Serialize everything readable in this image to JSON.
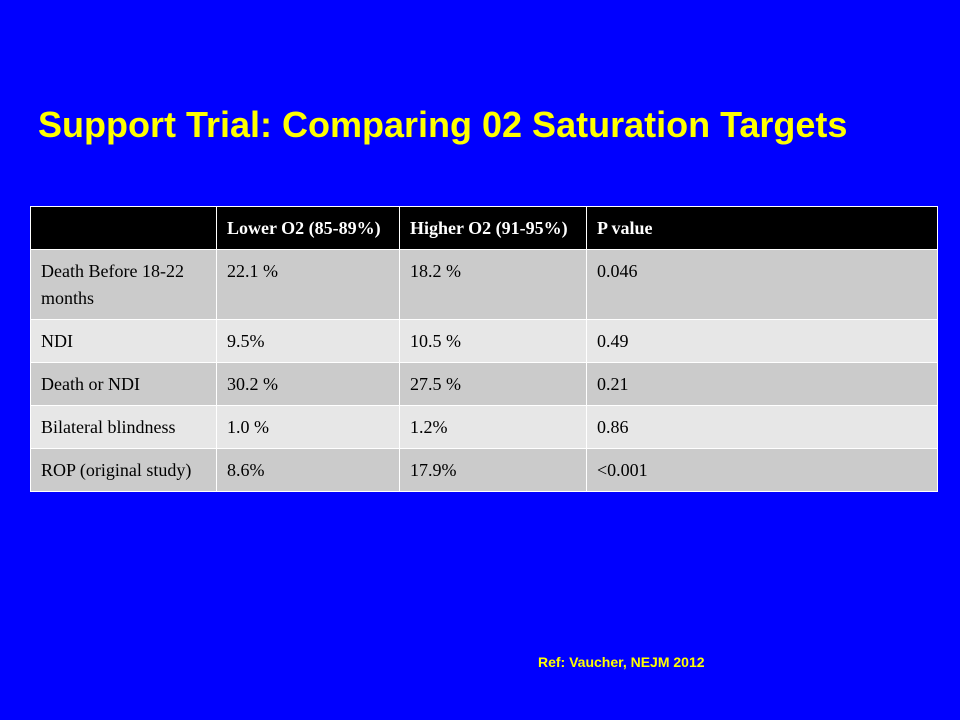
{
  "slide": {
    "title": "Support Trial: Comparing 02 Saturation Targets",
    "reference": "Ref: Vaucher, NEJM 2012",
    "colors": {
      "background": "#0000ff",
      "title": "#ffff00",
      "header_row": "#000000",
      "row_odd": "#cbcbcb",
      "row_even": "#e7e7e7"
    }
  },
  "table": {
    "headers": [
      "",
      "Lower O2 (85-89%)",
      "Higher O2 (91-95%)",
      "P value"
    ],
    "rows": [
      [
        "Death Before 18-22 months",
        "22.1 %",
        "18.2 %",
        "0.046"
      ],
      [
        "NDI",
        "9.5%",
        "10.5 %",
        "0.49"
      ],
      [
        "Death or NDI",
        "30.2 %",
        "27.5 %",
        "0.21"
      ],
      [
        "Bilateral blindness",
        "1.0 %",
        "1.2%",
        "0.86"
      ],
      [
        "ROP (original study)",
        "8.6%",
        "17.9%",
        "<0.001"
      ]
    ]
  }
}
